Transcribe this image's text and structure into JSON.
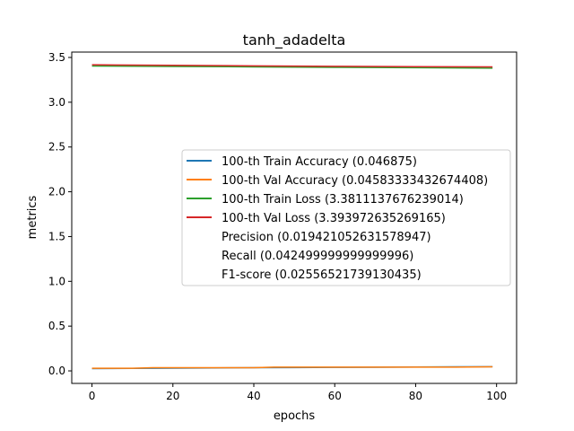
{
  "chart_data": {
    "type": "line",
    "title": "tanh_adadelta",
    "xlabel": "epochs",
    "ylabel": "metrics",
    "xlim": [
      -5,
      104.95
    ],
    "ylim": [
      -0.14,
      3.56
    ],
    "xticks": [
      0,
      20,
      40,
      60,
      80,
      100
    ],
    "yticks": [
      0.0,
      0.5,
      1.0,
      1.5,
      2.0,
      2.5,
      3.0,
      3.5
    ],
    "xtick_labels": [
      "0",
      "20",
      "40",
      "60",
      "80",
      "100"
    ],
    "ytick_labels": [
      "0.0",
      "0.5",
      "1.0",
      "1.5",
      "2.0",
      "2.5",
      "3.0",
      "3.5"
    ],
    "grid": false,
    "legend_position": "center-right",
    "series": [
      {
        "name": "100-th Train Accuracy (0.046875)",
        "color": "#1f77b4",
        "x": [
          0,
          10,
          20,
          30,
          40,
          50,
          60,
          70,
          80,
          90,
          99
        ],
        "values": [
          0.025,
          0.028,
          0.031,
          0.033,
          0.035,
          0.037,
          0.039,
          0.041,
          0.043,
          0.045,
          0.046875
        ]
      },
      {
        "name": "100-th Val Accuracy (0.04583333432674408)",
        "color": "#ff7f0e",
        "x": [
          0,
          10,
          15,
          20,
          30,
          40,
          45,
          55,
          60,
          70,
          80,
          90,
          99
        ],
        "values": [
          0.029,
          0.029,
          0.035,
          0.035,
          0.035,
          0.035,
          0.042,
          0.042,
          0.042,
          0.042,
          0.042,
          0.042,
          0.04583
        ]
      },
      {
        "name": "100-th Train Loss (3.3811137676239014)",
        "color": "#2ca02c",
        "x": [
          0,
          20,
          40,
          60,
          80,
          99
        ],
        "values": [
          3.405,
          3.4,
          3.395,
          3.39,
          3.386,
          3.3811
        ]
      },
      {
        "name": "100-th Val Loss (3.393972635269165)",
        "color": "#d62728",
        "x": [
          0,
          20,
          40,
          60,
          80,
          99
        ],
        "values": [
          3.418,
          3.412,
          3.406,
          3.401,
          3.397,
          3.39397
        ]
      }
    ],
    "legend_extra": [
      "Precision (0.019421052631578947)",
      "Recall (0.042499999999999996)",
      "F1-score (0.02556521739130435)"
    ]
  }
}
